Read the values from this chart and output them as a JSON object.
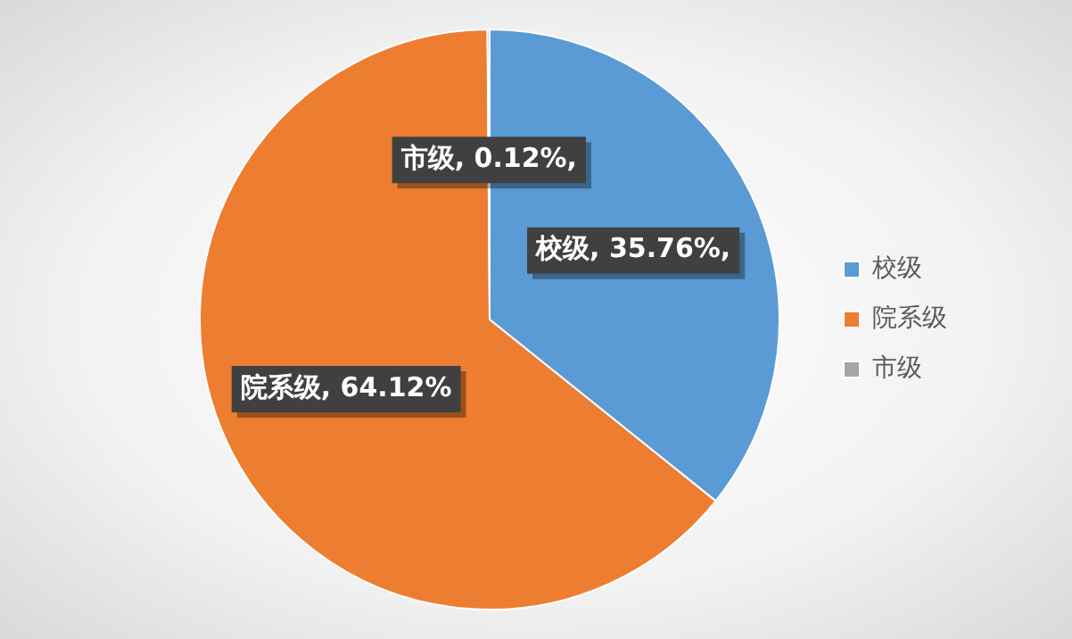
{
  "chart_data": {
    "type": "pie",
    "categories": [
      "校级",
      "院系级",
      "市级"
    ],
    "values": [
      35.76,
      64.12,
      0.12
    ],
    "colors": [
      "#5b9bd5",
      "#ed7d31",
      "#a5a5a5"
    ],
    "value_labels": [
      "校级, 35.76%,",
      "院系级, 64.12%",
      "市级, 0.12%,"
    ],
    "legend": "right"
  }
}
